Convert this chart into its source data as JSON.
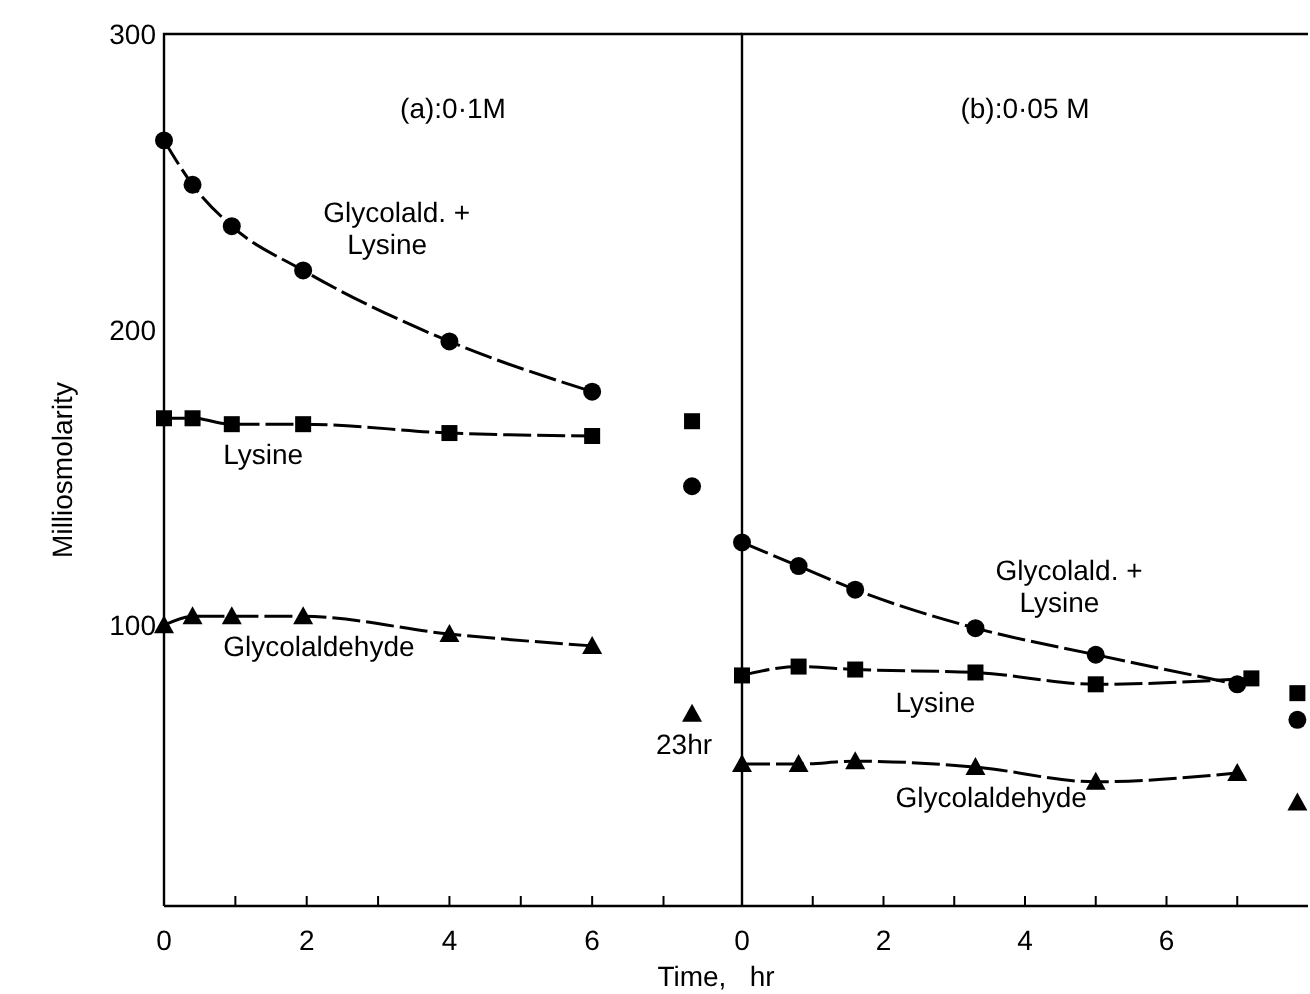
{
  "chart_data": [
    {
      "type": "line",
      "title": "(a):0·1M",
      "xlabel": "Time,   hr",
      "ylabel": "Milliosmolarity",
      "xlim": [
        0,
        8.1
      ],
      "ylim": [
        5,
        300
      ],
      "xticks": [
        0,
        {
          "value": 1,
          "label": null
        },
        2,
        {
          "value": 3,
          "label": null
        },
        4,
        {
          "value": 5,
          "label": null
        },
        6,
        {
          "value": 7,
          "label": null
        }
      ],
      "yticks": [
        100,
        200,
        300
      ],
      "grid": false,
      "line_style": "dashed",
      "series": [
        {
          "name": "Glycolald. + Lysine",
          "color": "#000000",
          "marker": "circle",
          "x": [
            0,
            0.4,
            0.95,
            1.95,
            4,
            6
          ],
          "values": [
            264,
            249,
            235,
            220,
            196,
            179
          ]
        },
        {
          "name": "Lysine",
          "color": "#000000",
          "marker": "square",
          "x": [
            0,
            0.4,
            0.95,
            1.95,
            4,
            6
          ],
          "values": [
            170,
            170,
            168,
            168,
            165,
            164
          ]
        },
        {
          "name": "Glycolaldehyde",
          "color": "#000000",
          "marker": "triangle",
          "x": [
            0,
            0.4,
            0.95,
            1.95,
            4,
            6
          ],
          "values": [
            100,
            103,
            103,
            103,
            97,
            93
          ]
        },
        {
          "type": "scatter",
          "color": "#000000",
          "marker": "circle",
          "x": [
            7.4
          ],
          "values": [
            147
          ]
        },
        {
          "type": "scatter",
          "color": "#000000",
          "marker": "square",
          "x": [
            7.4
          ],
          "values": [
            169
          ]
        },
        {
          "type": "scatter",
          "color": "#000000",
          "marker": "triangle",
          "x": [
            7.4
          ],
          "values": [
            70
          ]
        }
      ],
      "annotations": [
        {
          "text": "23hr",
          "x": 7.4,
          "y": 70
        }
      ]
    },
    {
      "type": "line",
      "title": "(b):0·05 M",
      "xlim": [
        0,
        8
      ],
      "ylim": [
        5,
        300
      ],
      "tick_labels": "x",
      "xticks": [
        0,
        {
          "value": 1,
          "label": null
        },
        2,
        {
          "value": 3,
          "label": null
        },
        4,
        {
          "value": 5,
          "label": null
        },
        6,
        {
          "value": 7,
          "label": null
        }
      ],
      "grid": false,
      "line_style": "dashed",
      "series": [
        {
          "name": "Glycolald. + Lysine",
          "color": "#000000",
          "marker": "circle",
          "x": [
            0,
            0.8,
            1.6,
            3.3,
            5,
            7
          ],
          "values": [
            128,
            120,
            112,
            99,
            90,
            80
          ]
        },
        {
          "name": "Lysine",
          "color": "#000000",
          "marker": "square",
          "x": [
            0,
            0.8,
            1.6,
            3.3,
            5,
            7.2
          ],
          "values": [
            83,
            86,
            85,
            84,
            80,
            82
          ]
        },
        {
          "name": "Glycolaldehyde",
          "color": "#000000",
          "marker": "triangle",
          "x": [
            0,
            0.8,
            1.6,
            3.3,
            5,
            7
          ],
          "values": [
            53,
            53,
            54,
            52,
            47,
            50
          ]
        },
        {
          "type": "scatter",
          "color": "#000000",
          "marker": "circle",
          "x": [
            7.85
          ],
          "values": [
            68
          ]
        },
        {
          "type": "scatter",
          "color": "#000000",
          "marker": "square",
          "x": [
            7.85
          ],
          "values": [
            77
          ]
        },
        {
          "type": "scatter",
          "color": "#000000",
          "marker": "triangle",
          "x": [
            7.85
          ],
          "values": [
            40
          ]
        }
      ]
    }
  ]
}
